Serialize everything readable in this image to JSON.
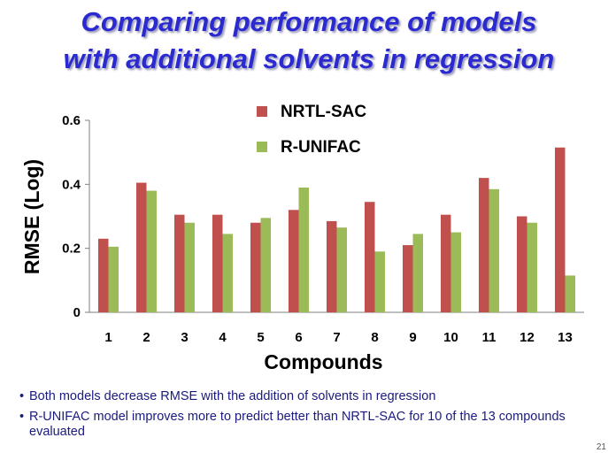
{
  "title": {
    "line1": "Comparing performance of models",
    "line2": "with additional solvents in regression"
  },
  "chart_data": {
    "type": "bar",
    "categories": [
      "1",
      "2",
      "3",
      "4",
      "5",
      "6",
      "7",
      "8",
      "9",
      "10",
      "11",
      "12",
      "13"
    ],
    "series": [
      {
        "name": "NRTL-SAC",
        "values": [
          0.23,
          0.405,
          0.305,
          0.305,
          0.28,
          0.32,
          0.285,
          0.345,
          0.21,
          0.305,
          0.42,
          0.3,
          0.515
        ],
        "color": "#c0504d"
      },
      {
        "name": "R-UNIFAC",
        "values": [
          0.205,
          0.38,
          0.28,
          0.245,
          0.295,
          0.39,
          0.265,
          0.19,
          0.245,
          0.25,
          0.385,
          0.28,
          0.115
        ],
        "color": "#9bbb59"
      }
    ],
    "xlabel": "Compounds",
    "ylabel": "RMSE  (Log)",
    "ylim": [
      0,
      0.6
    ],
    "yticks": [
      0,
      0.2,
      0.4,
      0.6
    ],
    "ytick_labels": [
      "0",
      "0.2",
      "0.4",
      "0.6"
    ],
    "grid": false,
    "legend": "top-center"
  },
  "bullets": [
    "Both models decrease RMSE with the addition of solvents in regression",
    "R-UNIFAC model improves more to predict better than NRTL-SAC for 10 of the 13 compounds evaluated"
  ],
  "page_number": "21"
}
